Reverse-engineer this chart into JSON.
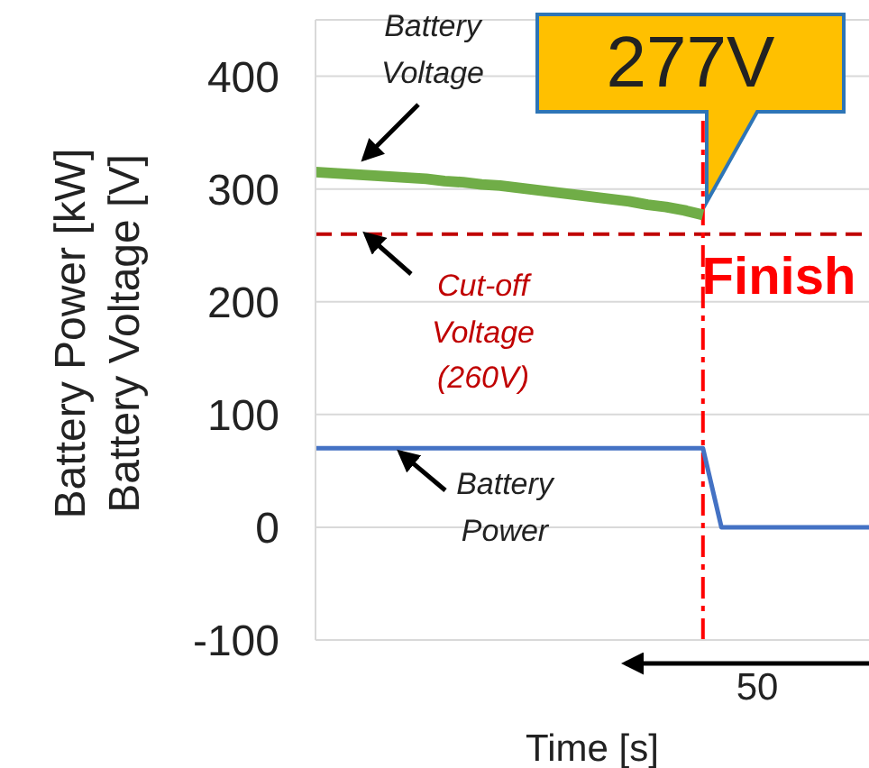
{
  "chart_data": {
    "type": "line",
    "xlabel": "Time [s]",
    "ylabel": "Battery Power [kW]\nBattery Voltage [V]",
    "categories": [
      null,
      null,
      null,
      null,
      null,
      null,
      null,
      null,
      null,
      null,
      null,
      null,
      null,
      null,
      null,
      null,
      null,
      null,
      null,
      null,
      null,
      null,
      null,
      null,
      null,
      null,
      null,
      null,
      null,
      null,
      null
    ],
    "series": [
      {
        "name": "Battery Voltage",
        "color": "#70ad47",
        "values": [
          315,
          314,
          313,
          312,
          311,
          310,
          309,
          307,
          306,
          304,
          303,
          301,
          299,
          297,
          295,
          293,
          291,
          289,
          286,
          284,
          281,
          277,
          null,
          null,
          null,
          null,
          null,
          null,
          null,
          null,
          null
        ]
      },
      {
        "name": "Battery Power",
        "color": "#4472c4",
        "values": [
          70,
          70,
          70,
          70,
          70,
          70,
          70,
          70,
          70,
          70,
          70,
          70,
          70,
          70,
          70,
          70,
          70,
          70,
          70,
          70,
          70,
          70,
          0,
          0,
          0,
          0,
          0,
          0,
          0,
          0,
          0
        ]
      }
    ],
    "ylim": [
      -100,
      450
    ],
    "yticks": [
      -100,
      0,
      100,
      200,
      300,
      400
    ],
    "tick_labels": "y",
    "grid": "y",
    "marker": "none",
    "line_style": "solid",
    "ref_lines": [
      {
        "axis": "y",
        "value": 260,
        "label": "Cut-off Voltage (260V)",
        "color": "#c00000",
        "line_style": "dashed"
      }
    ],
    "annotations": [
      "277V",
      "50",
      "Finish"
    ]
  }
}
